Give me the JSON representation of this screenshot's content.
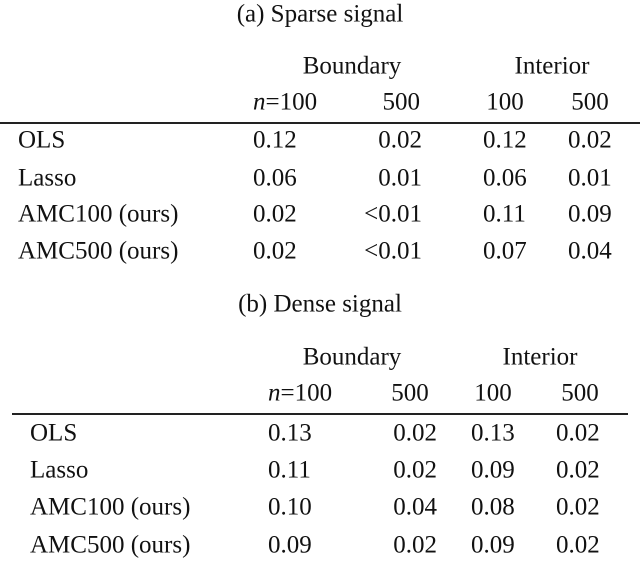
{
  "tables": [
    {
      "caption": "(a) Sparse signal",
      "groups": [
        "Boundary",
        "Interior"
      ],
      "subheader": [
        [
          "n",
          "=100"
        ],
        "500",
        "100",
        "500"
      ],
      "rows": [
        [
          "OLS",
          "0.12",
          "0.02",
          "0.12",
          "0.02"
        ],
        [
          "Lasso",
          "0.06",
          "0.01",
          "0.06",
          "0.01"
        ],
        [
          "AMC100 (ours)",
          "0.02",
          "<0.01",
          "0.11",
          "0.09"
        ],
        [
          "AMC500 (ours)",
          "0.02",
          "<0.01",
          "0.07",
          "0.04"
        ]
      ]
    },
    {
      "caption": "(b) Dense signal",
      "groups": [
        "Boundary",
        "Interior"
      ],
      "subheader": [
        [
          "n",
          "=100"
        ],
        "500",
        "100",
        "500"
      ],
      "rows": [
        [
          "OLS",
          "0.13",
          "0.02",
          "0.13",
          "0.02"
        ],
        [
          "Lasso",
          "0.11",
          "0.02",
          "0.09",
          "0.02"
        ],
        [
          "AMC100 (ours)",
          "0.10",
          "0.04",
          "0.08",
          "0.02"
        ],
        [
          "AMC500 (ours)",
          "0.09",
          "0.02",
          "0.09",
          "0.02"
        ]
      ]
    }
  ]
}
